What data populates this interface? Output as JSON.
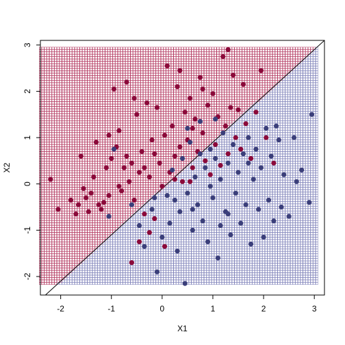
{
  "chart_data": {
    "type": "scatter",
    "title": "",
    "xlabel": "X1",
    "ylabel": "X2",
    "xlim": [
      -2.4,
      3.2
    ],
    "ylim": [
      -2.4,
      3.1
    ],
    "xticks": [
      -2,
      -1,
      0,
      1,
      2,
      3
    ],
    "yticks": [
      -2,
      -1,
      0,
      1,
      2,
      3
    ],
    "grid_region": {
      "xrange": [
        -2.4,
        3.05
      ],
      "yrange": [
        -2.15,
        2.93
      ]
    },
    "decision_boundary": {
      "slope": 1.0,
      "intercept": -0.1
    },
    "colors": {
      "class_red": "#8B0A3A",
      "class_blue": "#3B3F7A",
      "grid_red": "#B0305A",
      "grid_blue": "#7C7FB8",
      "line": "#000000"
    },
    "series": [
      {
        "class": "red",
        "points": [
          [
            -2.2,
            0.1
          ],
          [
            -2.05,
            -0.55
          ],
          [
            -1.8,
            -0.35
          ],
          [
            -1.7,
            -0.65
          ],
          [
            -1.65,
            -0.45
          ],
          [
            -1.6,
            0.6
          ],
          [
            -1.55,
            -0.1
          ],
          [
            -1.5,
            -0.3
          ],
          [
            -1.45,
            -0.6
          ],
          [
            -1.4,
            -0.2
          ],
          [
            -1.35,
            0.15
          ],
          [
            -1.3,
            0.9
          ],
          [
            -1.25,
            -0.45
          ],
          [
            -1.2,
            -0.55
          ],
          [
            -1.15,
            -0.4
          ],
          [
            -1.1,
            0.35
          ],
          [
            -1.05,
            -0.25
          ],
          [
            -1.0,
            0.55
          ],
          [
            -0.95,
            2.05
          ],
          [
            -0.9,
            0.8
          ],
          [
            -0.85,
            1.15
          ],
          [
            -0.8,
            -0.15
          ],
          [
            -0.75,
            0.35
          ],
          [
            -0.7,
            2.2
          ],
          [
            -0.65,
            0.05
          ],
          [
            -0.6,
            0.45
          ],
          [
            -0.55,
            -0.35
          ],
          [
            -0.5,
            1.5
          ],
          [
            -0.45,
            0.25
          ],
          [
            -0.4,
            0.7
          ],
          [
            -0.35,
            -0.65
          ],
          [
            -0.3,
            1.75
          ],
          [
            -0.25,
            0.15
          ],
          [
            -0.2,
            0.95
          ],
          [
            -0.15,
            -0.75
          ],
          [
            -0.1,
            1.65
          ],
          [
            -0.05,
            0.45
          ],
          [
            0.0,
            -0.05
          ],
          [
            0.05,
            1.05
          ],
          [
            0.1,
            2.55
          ],
          [
            0.15,
            0.25
          ],
          [
            0.2,
            1.25
          ],
          [
            0.25,
            0.6
          ],
          [
            0.3,
            2.1
          ],
          [
            0.35,
            0.8
          ],
          [
            0.4,
            0.05
          ],
          [
            0.45,
            1.55
          ],
          [
            0.5,
            0.95
          ],
          [
            0.55,
            1.85
          ],
          [
            0.6,
            0.35
          ],
          [
            0.65,
            1.4
          ],
          [
            0.7,
            0.7
          ],
          [
            0.75,
            2.3
          ],
          [
            0.8,
            1.1
          ],
          [
            0.85,
            0.5
          ],
          [
            0.9,
            1.7
          ],
          [
            0.95,
            0.2
          ],
          [
            1.0,
            1.95
          ],
          [
            1.05,
            0.85
          ],
          [
            1.1,
            1.45
          ],
          [
            1.15,
            0.4
          ],
          [
            1.2,
            2.75
          ],
          [
            1.25,
            1.25
          ],
          [
            1.3,
            0.65
          ],
          [
            1.35,
            1.65
          ],
          [
            1.4,
            2.35
          ],
          [
            1.45,
            1.0
          ],
          [
            1.5,
            1.6
          ],
          [
            1.55,
            0.75
          ],
          [
            1.6,
            2.15
          ],
          [
            1.65,
            1.3
          ],
          [
            1.75,
            0.55
          ],
          [
            1.85,
            1.55
          ],
          [
            1.95,
            2.45
          ],
          [
            2.05,
            1.0
          ],
          [
            2.2,
            0.45
          ],
          [
            -0.25,
            -1.05
          ],
          [
            -0.45,
            -1.25
          ],
          [
            0.05,
            -1.35
          ],
          [
            -0.6,
            -1.7
          ],
          [
            -0.85,
            -0.05
          ],
          [
            -1.05,
            1.05
          ],
          [
            -0.15,
            0.65
          ],
          [
            0.25,
            0.1
          ],
          [
            0.55,
            0.05
          ],
          [
            -0.7,
            0.6
          ],
          [
            0.35,
            2.45
          ],
          [
            -0.55,
            1.85
          ],
          [
            1.3,
            2.9
          ],
          [
            0.8,
            2.05
          ],
          [
            0.6,
            1.2
          ],
          [
            -0.35,
            0.35
          ]
        ]
      },
      {
        "class": "blue",
        "points": [
          [
            -1.05,
            -0.7
          ],
          [
            -0.95,
            0.75
          ],
          [
            -0.6,
            -0.45
          ],
          [
            -0.45,
            -0.9
          ],
          [
            -0.35,
            -1.35
          ],
          [
            -0.2,
            -0.55
          ],
          [
            -0.1,
            -1.9
          ],
          [
            0.0,
            -1.15
          ],
          [
            0.1,
            -0.25
          ],
          [
            0.15,
            -0.85
          ],
          [
            0.2,
            0.3
          ],
          [
            0.3,
            -1.45
          ],
          [
            0.35,
            -0.6
          ],
          [
            0.4,
            0.55
          ],
          [
            0.45,
            -2.15
          ],
          [
            0.5,
            -0.2
          ],
          [
            0.55,
            0.9
          ],
          [
            0.6,
            -1.0
          ],
          [
            0.65,
            0.15
          ],
          [
            0.7,
            -0.45
          ],
          [
            0.75,
            1.35
          ],
          [
            0.8,
            -0.8
          ],
          [
            0.85,
            0.35
          ],
          [
            0.9,
            -1.25
          ],
          [
            0.95,
            0.75
          ],
          [
            1.0,
            -0.3
          ],
          [
            1.05,
            0.55
          ],
          [
            1.1,
            -1.6
          ],
          [
            1.15,
            0.1
          ],
          [
            1.2,
            1.1
          ],
          [
            1.25,
            -0.6
          ],
          [
            1.3,
            0.45
          ],
          [
            1.35,
            -1.1
          ],
          [
            1.4,
            0.85
          ],
          [
            1.45,
            -0.2
          ],
          [
            1.5,
            0.25
          ],
          [
            1.55,
            -0.85
          ],
          [
            1.6,
            0.65
          ],
          [
            1.65,
            -0.45
          ],
          [
            1.7,
            1.0
          ],
          [
            1.75,
            -1.3
          ],
          [
            1.8,
            0.1
          ],
          [
            1.85,
            0.75
          ],
          [
            1.9,
            -0.55
          ],
          [
            1.95,
            0.35
          ],
          [
            2.0,
            -1.15
          ],
          [
            2.05,
            1.2
          ],
          [
            2.1,
            -0.35
          ],
          [
            2.15,
            0.6
          ],
          [
            2.2,
            -0.8
          ],
          [
            2.3,
            0.95
          ],
          [
            2.35,
            -0.5
          ],
          [
            2.4,
            0.2
          ],
          [
            2.5,
            -0.7
          ],
          [
            2.6,
            1.0
          ],
          [
            2.75,
            0.3
          ],
          [
            2.9,
            -0.4
          ],
          [
            2.95,
            1.5
          ],
          [
            1.3,
            -0.65
          ],
          [
            0.95,
            -0.05
          ],
          [
            0.6,
            -0.55
          ],
          [
            1.7,
            0.45
          ],
          [
            2.25,
            1.25
          ],
          [
            0.25,
            -0.35
          ],
          [
            0.5,
            1.2
          ],
          [
            1.05,
            1.4
          ],
          [
            -0.15,
            -0.3
          ],
          [
            2.65,
            0.05
          ],
          [
            1.15,
            -0.9
          ],
          [
            0.75,
            0.65
          ]
        ]
      }
    ]
  }
}
